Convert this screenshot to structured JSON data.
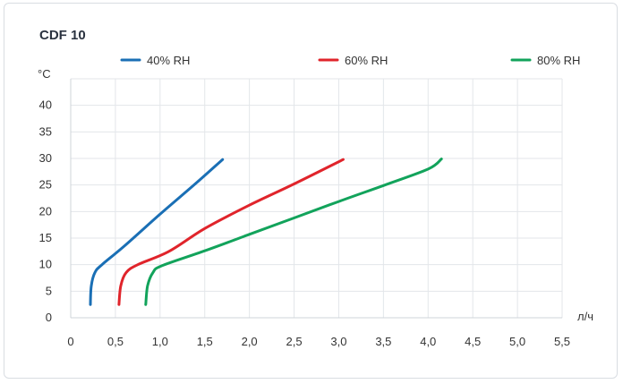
{
  "chart_data": {
    "type": "line",
    "title": "CDF 10",
    "ylabel": "°C",
    "xlabel": "л/ч",
    "xlim": [
      0,
      5.5
    ],
    "ylim": [
      0,
      45
    ],
    "x_ticks": [
      "0",
      "0,5",
      "1,0",
      "1,5",
      "2,0",
      "2,5",
      "3,0",
      "3,5",
      "4,0",
      "4,5",
      "5,0",
      "5,5"
    ],
    "y_ticks": [
      "0",
      "5",
      "10",
      "15",
      "20",
      "25",
      "30",
      "35",
      "40"
    ],
    "grid": true,
    "legend_position": "top",
    "series": [
      {
        "name": "40% RH",
        "color": "#1a6fb5",
        "points": [
          [
            0.22,
            2.5
          ],
          [
            0.23,
            6
          ],
          [
            0.27,
            8.5
          ],
          [
            0.35,
            10
          ],
          [
            0.6,
            13.5
          ],
          [
            1.0,
            19.5
          ],
          [
            1.4,
            25.3
          ],
          [
            1.7,
            29.8
          ]
        ]
      },
      {
        "name": "60% RH",
        "color": "#e0242b",
        "points": [
          [
            0.54,
            2.5
          ],
          [
            0.56,
            6
          ],
          [
            0.62,
            8.5
          ],
          [
            0.75,
            10
          ],
          [
            1.1,
            12.5
          ],
          [
            1.5,
            16.8
          ],
          [
            2.0,
            21.2
          ],
          [
            2.5,
            25.2
          ],
          [
            3.05,
            29.8
          ]
        ]
      },
      {
        "name": "80% RH",
        "color": "#12a35b",
        "points": [
          [
            0.84,
            2.5
          ],
          [
            0.86,
            6
          ],
          [
            0.92,
            8.5
          ],
          [
            1.02,
            9.8
          ],
          [
            1.5,
            12.6
          ],
          [
            2.0,
            15.7
          ],
          [
            2.5,
            18.8
          ],
          [
            3.0,
            21.9
          ],
          [
            3.5,
            24.9
          ],
          [
            4.0,
            28.0
          ],
          [
            4.15,
            29.9
          ]
        ]
      }
    ]
  }
}
